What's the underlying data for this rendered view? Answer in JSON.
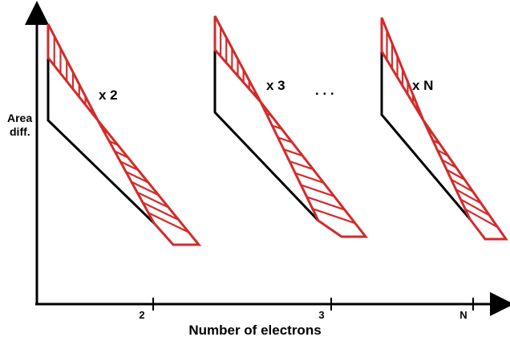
{
  "diagram": {
    "y_axis_label_line1": "Area",
    "y_axis_label_line2": "diff.",
    "x_axis_label": "Number of electrons",
    "tick_labels": [
      "2",
      "3",
      "N"
    ],
    "multipliers": [
      "x 2",
      "x 3",
      "x N"
    ],
    "ellipsis": ". . .",
    "colors": {
      "axis": "#000000",
      "outline": "#000000",
      "hatch": "#d42a2a"
    }
  }
}
